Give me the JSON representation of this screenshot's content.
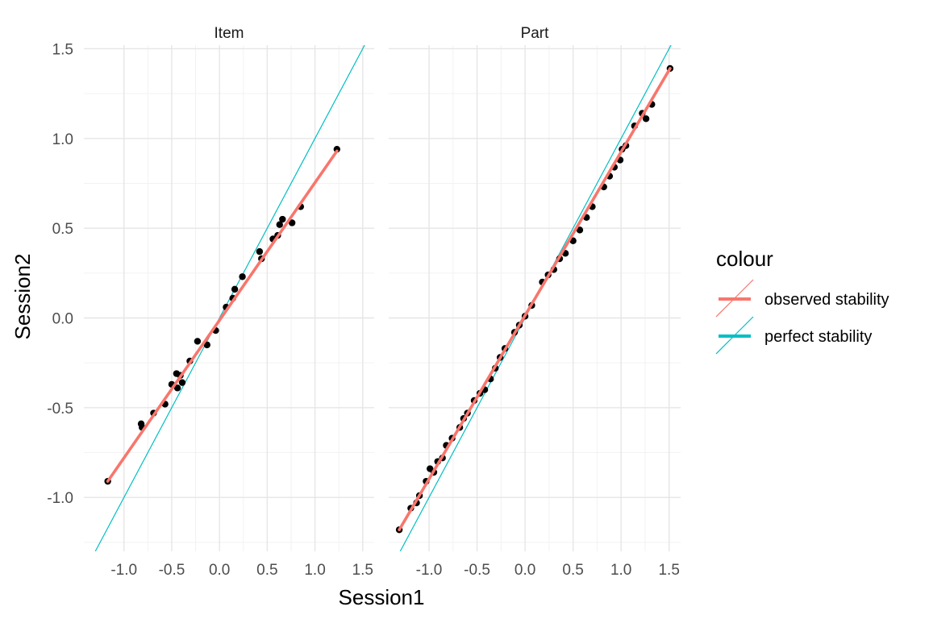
{
  "chart_data": {
    "type": "scatter",
    "xlabel": "Session1",
    "ylabel": "Session2",
    "xlim": [
      -1.42,
      1.62
    ],
    "ylim": [
      -1.3,
      1.52
    ],
    "x_ticks": [
      -1.0,
      -0.5,
      0.0,
      0.5,
      1.0,
      1.5
    ],
    "x_tick_labels": [
      "-1.0",
      "-0.5",
      "0.0",
      "0.5",
      "1.0",
      "1.5"
    ],
    "y_ticks": [
      -1.0,
      -0.5,
      0.0,
      0.5,
      1.0,
      1.5
    ],
    "y_tick_labels": [
      "-1.0",
      "-0.5",
      "0.0",
      "0.5",
      "1.0",
      "1.5"
    ],
    "grid": true,
    "legend": {
      "title": "colour",
      "position": "right",
      "entries": [
        {
          "label": "observed stability",
          "color": "#F8766D"
        },
        {
          "label": "perfect stability",
          "color": "#00BFC4"
        }
      ]
    },
    "panels": [
      {
        "name": "Item",
        "observed_line": {
          "x": [
            -1.17,
            1.23
          ],
          "y": [
            -0.91,
            0.93
          ],
          "color": "#F8766D"
        },
        "perfect_line": {
          "x": [
            -1.3,
            1.52
          ],
          "y": [
            -1.3,
            1.52
          ],
          "color": "#00BFC4"
        },
        "points": [
          {
            "x": -1.17,
            "y": -0.91
          },
          {
            "x": -0.82,
            "y": -0.59
          },
          {
            "x": -0.81,
            "y": -0.61
          },
          {
            "x": -0.69,
            "y": -0.53
          },
          {
            "x": -0.57,
            "y": -0.48
          },
          {
            "x": -0.5,
            "y": -0.37
          },
          {
            "x": -0.45,
            "y": -0.31
          },
          {
            "x": -0.44,
            "y": -0.39
          },
          {
            "x": -0.41,
            "y": -0.32
          },
          {
            "x": -0.39,
            "y": -0.36
          },
          {
            "x": -0.31,
            "y": -0.24
          },
          {
            "x": -0.23,
            "y": -0.13
          },
          {
            "x": -0.13,
            "y": -0.15
          },
          {
            "x": -0.04,
            "y": -0.07
          },
          {
            "x": 0.07,
            "y": 0.06
          },
          {
            "x": 0.14,
            "y": 0.11
          },
          {
            "x": 0.16,
            "y": 0.16
          },
          {
            "x": 0.24,
            "y": 0.23
          },
          {
            "x": 0.42,
            "y": 0.37
          },
          {
            "x": 0.44,
            "y": 0.33
          },
          {
            "x": 0.56,
            "y": 0.44
          },
          {
            "x": 0.61,
            "y": 0.46
          },
          {
            "x": 0.63,
            "y": 0.52
          },
          {
            "x": 0.66,
            "y": 0.55
          },
          {
            "x": 0.76,
            "y": 0.53
          },
          {
            "x": 0.85,
            "y": 0.62
          },
          {
            "x": 1.23,
            "y": 0.94
          }
        ]
      },
      {
        "name": "Part",
        "observed_line": {
          "x": [
            -1.31,
            1.51
          ],
          "y": [
            -1.18,
            1.39
          ],
          "color": "#F8766D"
        },
        "perfect_line": {
          "x": [
            -1.3,
            1.52
          ],
          "y": [
            -1.3,
            1.52
          ],
          "color": "#00BFC4"
        },
        "points": [
          {
            "x": -1.31,
            "y": -1.18
          },
          {
            "x": -1.19,
            "y": -1.06
          },
          {
            "x": -1.13,
            "y": -1.03
          },
          {
            "x": -1.1,
            "y": -0.99
          },
          {
            "x": -1.03,
            "y": -0.91
          },
          {
            "x": -0.99,
            "y": -0.84
          },
          {
            "x": -0.95,
            "y": -0.86
          },
          {
            "x": -0.91,
            "y": -0.8
          },
          {
            "x": -0.86,
            "y": -0.78
          },
          {
            "x": -0.82,
            "y": -0.71
          },
          {
            "x": -0.76,
            "y": -0.67
          },
          {
            "x": -0.68,
            "y": -0.61
          },
          {
            "x": -0.64,
            "y": -0.56
          },
          {
            "x": -0.6,
            "y": -0.53
          },
          {
            "x": -0.53,
            "y": -0.46
          },
          {
            "x": -0.47,
            "y": -0.42
          },
          {
            "x": -0.42,
            "y": -0.4
          },
          {
            "x": -0.36,
            "y": -0.34
          },
          {
            "x": -0.31,
            "y": -0.28
          },
          {
            "x": -0.26,
            "y": -0.22
          },
          {
            "x": -0.21,
            "y": -0.17
          },
          {
            "x": -0.11,
            "y": -0.08
          },
          {
            "x": -0.06,
            "y": -0.04
          },
          {
            "x": 0.0,
            "y": 0.01
          },
          {
            "x": 0.07,
            "y": 0.07
          },
          {
            "x": 0.18,
            "y": 0.2
          },
          {
            "x": 0.24,
            "y": 0.24
          },
          {
            "x": 0.3,
            "y": 0.27
          },
          {
            "x": 0.36,
            "y": 0.33
          },
          {
            "x": 0.42,
            "y": 0.36
          },
          {
            "x": 0.5,
            "y": 0.43
          },
          {
            "x": 0.57,
            "y": 0.49
          },
          {
            "x": 0.64,
            "y": 0.56
          },
          {
            "x": 0.7,
            "y": 0.62
          },
          {
            "x": 0.82,
            "y": 0.73
          },
          {
            "x": 0.88,
            "y": 0.79
          },
          {
            "x": 0.93,
            "y": 0.84
          },
          {
            "x": 0.99,
            "y": 0.88
          },
          {
            "x": 1.01,
            "y": 0.94
          },
          {
            "x": 1.05,
            "y": 0.96
          },
          {
            "x": 1.14,
            "y": 1.07
          },
          {
            "x": 1.22,
            "y": 1.14
          },
          {
            "x": 1.26,
            "y": 1.11
          },
          {
            "x": 1.32,
            "y": 1.19
          },
          {
            "x": 1.51,
            "y": 1.39
          }
        ]
      }
    ]
  }
}
